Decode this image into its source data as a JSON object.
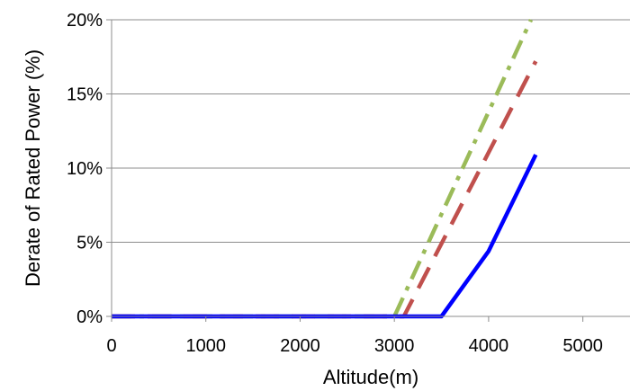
{
  "chart_data": {
    "type": "line",
    "xlabel": "Altitude(m)",
    "ylabel": "Derate of Rated Power (%)",
    "xlim": [
      0,
      5500
    ],
    "ylim": [
      0,
      20
    ],
    "x_ticks": [
      0,
      1000,
      2000,
      3000,
      4000,
      5000
    ],
    "y_ticks": [
      0,
      5,
      10,
      15,
      20
    ],
    "x_tick_labels": [
      "0",
      "1000",
      "2000",
      "3000",
      "4000",
      "5000"
    ],
    "y_tick_labels": [
      "0%",
      "5%",
      "10%",
      "15%",
      "20%"
    ],
    "grid": {
      "horizontal": true,
      "vertical": false
    },
    "legend": "none",
    "series": [
      {
        "color": "#0000ff",
        "dash": "solid",
        "x": [
          0,
          1000,
          2000,
          3000,
          3500,
          4000,
          4500
        ],
        "values": [
          0,
          0,
          0,
          0,
          0,
          4.4,
          10.9
        ]
      },
      {
        "color": "#c0504d",
        "dash": "dash",
        "x": [
          0,
          1000,
          2000,
          3000,
          3100,
          4500
        ],
        "values": [
          0,
          0,
          0,
          0,
          0,
          17.2
        ]
      },
      {
        "color": "#9bbb59",
        "dash": "dashdot",
        "x": [
          0,
          1000,
          2000,
          3000,
          4450
        ],
        "values": [
          0,
          0,
          0,
          0,
          20
        ]
      }
    ]
  }
}
